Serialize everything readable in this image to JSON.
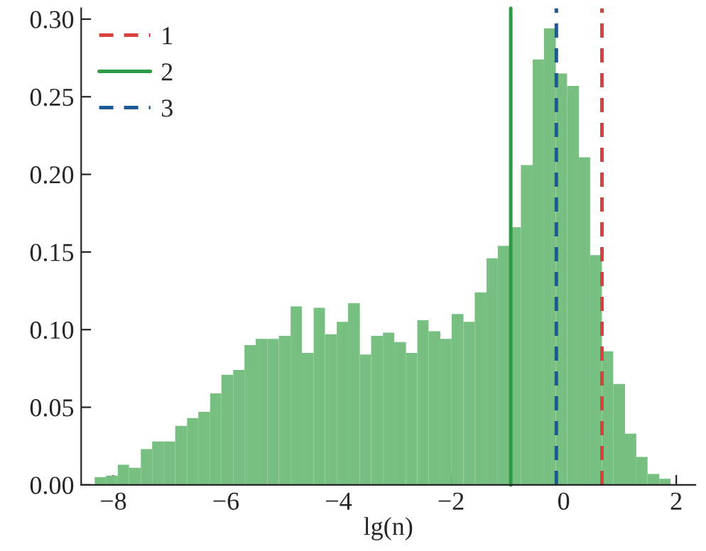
{
  "chart_data": {
    "type": "histogram",
    "xlabel": "lg(n)",
    "color": "#77c082",
    "bins": [
      -8.33,
      -8.13,
      -7.92,
      -7.72,
      -7.51,
      -7.31,
      -7.1,
      -6.9,
      -6.69,
      -6.49,
      -6.28,
      -6.08,
      -5.87,
      -5.67,
      -5.47,
      -5.26,
      -5.06,
      -4.85,
      -4.65,
      -4.44,
      -4.24,
      -4.03,
      -3.83,
      -3.62,
      -3.42,
      -3.21,
      -3.01,
      -2.8,
      -2.6,
      -2.4,
      -2.19,
      -1.99,
      -1.78,
      -1.58,
      -1.37,
      -1.17,
      -0.96,
      -0.76,
      -0.55,
      -0.35,
      -0.14,
      0.06,
      0.27,
      0.47,
      0.68,
      0.88,
      1.09,
      1.29,
      1.49,
      1.7,
      1.9
    ],
    "values": [
      0.005,
      0.006,
      0.013,
      0.011,
      0.023,
      0.028,
      0.028,
      0.038,
      0.043,
      0.047,
      0.059,
      0.071,
      0.074,
      0.09,
      0.094,
      0.094,
      0.096,
      0.115,
      0.085,
      0.114,
      0.097,
      0.105,
      0.117,
      0.084,
      0.096,
      0.098,
      0.092,
      0.085,
      0.106,
      0.099,
      0.094,
      0.11,
      0.105,
      0.124,
      0.146,
      0.154,
      0.166,
      0.206,
      0.274,
      0.294,
      0.265,
      0.257,
      0.211,
      0.148,
      0.086,
      0.065,
      0.033,
      0.018,
      0.007,
      0.004
    ],
    "xlim": [
      -8.57,
      2.34
    ],
    "xticks": [
      {
        "value": -8,
        "label": "−8"
      },
      {
        "value": -6,
        "label": "−6"
      },
      {
        "value": -4,
        "label": "−4"
      },
      {
        "value": -2,
        "label": "−2"
      },
      0,
      2
    ],
    "ylim": [
      0,
      0.307
    ],
    "yticks": [
      {
        "value": 0,
        "label": "0.00"
      },
      {
        "value": 0.05,
        "label": "0.05"
      },
      {
        "value": 0.1,
        "label": "0.10"
      },
      {
        "value": 0.15,
        "label": "0.15"
      },
      {
        "value": 0.2,
        "label": "0.20"
      },
      {
        "value": 0.25,
        "label": "0.25"
      },
      {
        "value": 0.3,
        "label": "0.30"
      }
    ],
    "series": [
      {
        "name": "1",
        "type": "line",
        "x": [
          0.68,
          0.68
        ],
        "values": [
          0,
          0.307
        ],
        "color": "#d9413f",
        "line_style": "dashed"
      },
      {
        "name": "2",
        "type": "line",
        "x": [
          -0.94,
          -0.94
        ],
        "values": [
          0,
          0.307
        ],
        "color": "#2e9a45",
        "line_style": "solid"
      },
      {
        "name": "3",
        "type": "line",
        "x": [
          -0.13,
          -0.13
        ],
        "values": [
          0,
          0.307
        ],
        "color": "#1c5a99",
        "line_style": "dashed"
      }
    ],
    "legend": "top left",
    "grid": false
  }
}
